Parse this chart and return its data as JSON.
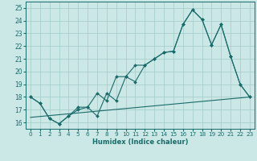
{
  "xlabel": "Humidex (Indice chaleur)",
  "bg_color": "#cce8e6",
  "grid_color": "#a8d0ce",
  "line_color": "#1a6b6b",
  "xlim": [
    -0.5,
    23.5
  ],
  "ylim": [
    15.5,
    25.5
  ],
  "xticks": [
    0,
    1,
    2,
    3,
    4,
    5,
    6,
    7,
    8,
    9,
    10,
    11,
    12,
    13,
    14,
    15,
    16,
    17,
    18,
    19,
    20,
    21,
    22,
    23
  ],
  "yticks": [
    16,
    17,
    18,
    19,
    20,
    21,
    22,
    23,
    24,
    25
  ],
  "curve1_x": [
    0,
    1,
    2,
    3,
    4,
    5,
    6,
    7,
    8,
    9,
    10,
    11,
    12,
    13,
    14,
    15,
    16,
    17,
    18,
    19,
    20,
    21,
    22,
    23
  ],
  "curve1_y": [
    18.0,
    17.5,
    16.3,
    15.9,
    16.5,
    17.2,
    17.2,
    18.3,
    17.7,
    19.6,
    19.6,
    20.5,
    20.5,
    21.0,
    21.5,
    21.6,
    23.7,
    24.85,
    24.1,
    22.1,
    23.7,
    21.2,
    19.0,
    18.0
  ],
  "curve2_x": [
    0,
    1,
    2,
    3,
    4,
    5,
    6,
    7,
    8,
    9,
    10,
    11,
    12,
    13,
    14,
    15,
    16,
    17,
    18,
    19,
    20,
    21,
    22,
    23
  ],
  "curve2_y": [
    18.0,
    17.5,
    16.3,
    15.9,
    16.5,
    17.0,
    17.2,
    16.5,
    18.3,
    17.7,
    19.6,
    19.2,
    20.5,
    21.0,
    21.5,
    21.6,
    23.7,
    24.85,
    24.1,
    22.1,
    23.7,
    21.2,
    19.0,
    18.0
  ],
  "curve3_x": [
    0,
    23
  ],
  "curve3_y": [
    16.4,
    18.0
  ]
}
